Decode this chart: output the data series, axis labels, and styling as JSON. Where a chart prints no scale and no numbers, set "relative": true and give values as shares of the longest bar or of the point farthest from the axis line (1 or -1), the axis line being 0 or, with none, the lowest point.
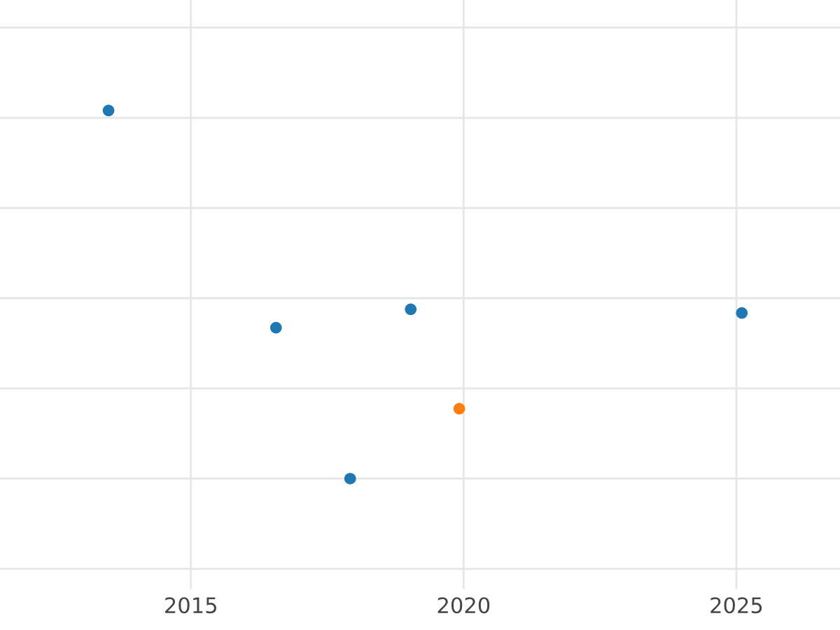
{
  "chart_data": {
    "type": "scatter",
    "relative": true,
    "x": [
      2013.49,
      2016.56,
      2017.92,
      2019.03,
      2019.92,
      2025.1
    ],
    "values": [
      1,
      0.41,
      0,
      0.46,
      0.19,
      0.45
    ],
    "colors": [
      "#1f77b4",
      "#1f77b4",
      "#1f77b4",
      "#1f77b4",
      "#ff7f0e",
      "#1f77b4"
    ],
    "xlim": [
      2011.5,
      2026.9
    ],
    "xticks": [
      2015,
      2020,
      2025
    ],
    "tick_labels": "x",
    "grid": true,
    "marker": "circle"
  }
}
